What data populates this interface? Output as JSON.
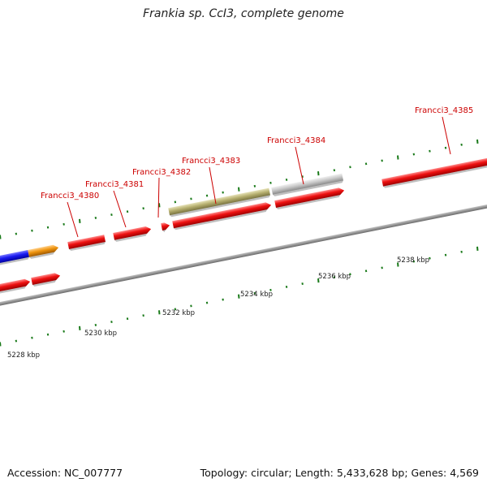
{
  "title": "Frankia sp. CcI3, complete genome",
  "footer": {
    "accession": "Accession: NC_007777",
    "summary": "Topology: circular; Length: 5,433,628 bp; Genes: 4,569"
  },
  "colors": {
    "gene_label": "#cc0000",
    "tick": "#1a7a1a",
    "backbone": "#808080",
    "cds_red": "#ee1111",
    "blue": "#1a1af0",
    "orange": "#f0950f",
    "olive": "#b7b070",
    "gray": "#c8c8c8"
  },
  "gene_labels": [
    {
      "id": "Francci3_4380",
      "text": "Francci3_4380"
    },
    {
      "id": "Francci3_4381",
      "text": "Francci3_4381"
    },
    {
      "id": "Francci3_4382",
      "text": "Francci3_4382"
    },
    {
      "id": "Francci3_4383",
      "text": "Francci3_4383"
    },
    {
      "id": "Francci3_4384",
      "text": "Francci3_4384"
    },
    {
      "id": "Francci3_4385",
      "text": "Francci3_4385"
    }
  ],
  "scale_labels": [
    {
      "id": "5228",
      "text": "5228 kbp"
    },
    {
      "id": "5230",
      "text": "5230 kbp"
    },
    {
      "id": "5232",
      "text": "5232 kbp"
    },
    {
      "id": "5234",
      "text": "5234 kbp"
    },
    {
      "id": "5236",
      "text": "5236 kbp"
    },
    {
      "id": "5238",
      "text": "5238 kbp"
    }
  ]
}
